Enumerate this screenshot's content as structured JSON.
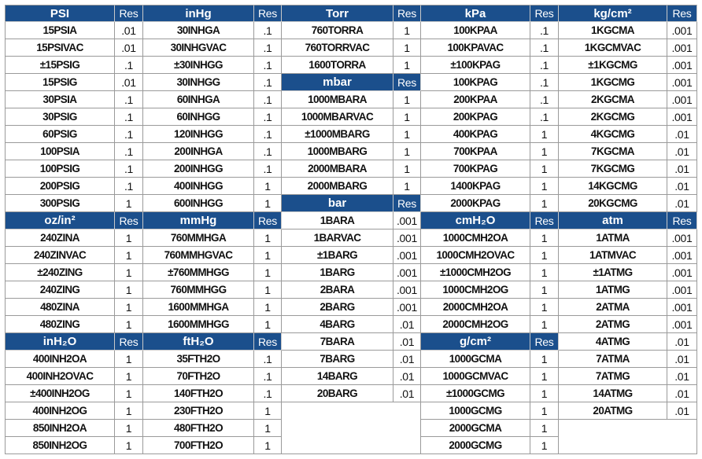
{
  "header_color": "#1b4f8c",
  "res_label": "Res",
  "groups": [
    {
      "sections": [
        {
          "title": "PSI",
          "rows": [
            [
              "15PSIA",
              ".01"
            ],
            [
              "15PSIVAC",
              ".01"
            ],
            [
              "±15PSIG",
              ".1"
            ],
            [
              "15PSIG",
              ".01"
            ],
            [
              "30PSIA",
              ".1"
            ],
            [
              "30PSIG",
              ".1"
            ],
            [
              "60PSIG",
              ".1"
            ],
            [
              "100PSIA",
              ".1"
            ],
            [
              "100PSIG",
              ".1"
            ],
            [
              "200PSIG",
              ".1"
            ],
            [
              "300PSIG",
              "1"
            ]
          ]
        },
        {
          "title": "oz/in²",
          "rows": [
            [
              "240ZINA",
              "1"
            ],
            [
              "240ZINVAC",
              "1"
            ],
            [
              "±240ZING",
              "1"
            ],
            [
              "240ZING",
              "1"
            ],
            [
              "480ZINA",
              "1"
            ],
            [
              "480ZING",
              "1"
            ]
          ]
        },
        {
          "title": "inH₂O",
          "rows": [
            [
              "400INH2OA",
              "1"
            ],
            [
              "400INH2OVAC",
              "1"
            ],
            [
              "±400INH2OG",
              "1"
            ],
            [
              "400INH2OG",
              "1"
            ],
            [
              "850INH2OA",
              "1"
            ],
            [
              "850INH2OG",
              "1"
            ]
          ]
        }
      ]
    },
    {
      "sections": [
        {
          "title": "inHg",
          "rows": [
            [
              "30INHGA",
              ".1"
            ],
            [
              "30INHGVAC",
              ".1"
            ],
            [
              "±30INHGG",
              ".1"
            ],
            [
              "30INHGG",
              ".1"
            ],
            [
              "60INHGA",
              ".1"
            ],
            [
              "60INHGG",
              ".1"
            ],
            [
              "120INHGG",
              ".1"
            ],
            [
              "200INHGA",
              ".1"
            ],
            [
              "200INHGG",
              ".1"
            ],
            [
              "400INHGG",
              "1"
            ],
            [
              "600INHGG",
              "1"
            ]
          ]
        },
        {
          "title": "mmHg",
          "rows": [
            [
              "760MMHGA",
              "1"
            ],
            [
              "760MMHGVAC",
              "1"
            ],
            [
              "±760MMHGG",
              "1"
            ],
            [
              "760MMHGG",
              "1"
            ],
            [
              "1600MMHGA",
              "1"
            ],
            [
              "1600MMHGG",
              "1"
            ]
          ]
        },
        {
          "title": "ftH₂O",
          "rows": [
            [
              "35FTH2O",
              ".1"
            ],
            [
              "70FTH2O",
              ".1"
            ],
            [
              "140FTH2O",
              ".1"
            ],
            [
              "230FTH2O",
              "1"
            ],
            [
              "480FTH2O",
              "1"
            ],
            [
              "700FTH2O",
              "1"
            ]
          ]
        }
      ]
    },
    {
      "sections": [
        {
          "title": "Torr",
          "rows": [
            [
              "760TORRA",
              "1"
            ],
            [
              "760TORRVAC",
              "1"
            ],
            [
              "1600TORRA",
              "1"
            ]
          ]
        },
        {
          "title": "mbar",
          "rows": [
            [
              "1000MBARA",
              "1"
            ],
            [
              "1000MBARVAC",
              "1"
            ],
            [
              "±1000MBARG",
              "1"
            ],
            [
              "1000MBARG",
              "1"
            ],
            [
              "2000MBARA",
              "1"
            ],
            [
              "2000MBARG",
              "1"
            ]
          ]
        },
        {
          "title": "bar",
          "rows": [
            [
              "1BARA",
              ".001"
            ],
            [
              "1BARVAC",
              ".001"
            ],
            [
              "±1BARG",
              ".001"
            ],
            [
              "1BARG",
              ".001"
            ],
            [
              "2BARA",
              ".001"
            ],
            [
              "2BARG",
              ".001"
            ],
            [
              "4BARG",
              ".01"
            ],
            [
              "7BARA",
              ".01"
            ],
            [
              "7BARG",
              ".01"
            ],
            [
              "14BARG",
              ".01"
            ],
            [
              "20BARG",
              ".01"
            ]
          ]
        }
      ]
    },
    {
      "sections": [
        {
          "title": "kPa",
          "rows": [
            [
              "100KPAA",
              ".1"
            ],
            [
              "100KPAVAC",
              ".1"
            ],
            [
              "±100KPAG",
              ".1"
            ],
            [
              "100KPAG",
              ".1"
            ],
            [
              "200KPAA",
              ".1"
            ],
            [
              "200KPAG",
              ".1"
            ],
            [
              "400KPAG",
              "1"
            ],
            [
              "700KPAA",
              "1"
            ],
            [
              "700KPAG",
              "1"
            ],
            [
              "1400KPAG",
              "1"
            ],
            [
              "2000KPAG",
              "1"
            ]
          ]
        },
        {
          "title": "cmH₂O",
          "rows": [
            [
              "1000CMH2OA",
              "1"
            ],
            [
              "1000CMH2OVAC",
              "1"
            ],
            [
              "±1000CMH2OG",
              "1"
            ],
            [
              "1000CMH2OG",
              "1"
            ],
            [
              "2000CMH2OA",
              "1"
            ],
            [
              "2000CMH2OG",
              "1"
            ]
          ]
        },
        {
          "title": "g/cm²",
          "rows": [
            [
              "1000GCMA",
              "1"
            ],
            [
              "1000GCMVAC",
              "1"
            ],
            [
              "±1000GCMG",
              "1"
            ],
            [
              "1000GCMG",
              "1"
            ],
            [
              "2000GCMA",
              "1"
            ],
            [
              "2000GCMG",
              "1"
            ]
          ]
        }
      ]
    },
    {
      "sections": [
        {
          "title": "kg/cm²",
          "rows": [
            [
              "1KGCMA",
              ".001"
            ],
            [
              "1KGCMVAC",
              ".001"
            ],
            [
              "±1KGCMG",
              ".001"
            ],
            [
              "1KGCMG",
              ".001"
            ],
            [
              "2KGCMA",
              ".001"
            ],
            [
              "2KGCMG",
              ".001"
            ],
            [
              "4KGCMG",
              ".01"
            ],
            [
              "7KGCMA",
              ".01"
            ],
            [
              "7KGCMG",
              ".01"
            ],
            [
              "14KGCMG",
              ".01"
            ],
            [
              "20KGCMG",
              ".01"
            ]
          ]
        },
        {
          "title": "atm",
          "rows": [
            [
              "1ATMA",
              ".001"
            ],
            [
              "1ATMVAC",
              ".001"
            ],
            [
              "±1ATMG",
              ".001"
            ],
            [
              "1ATMG",
              ".001"
            ],
            [
              "2ATMA",
              ".001"
            ],
            [
              "2ATMG",
              ".001"
            ],
            [
              "4ATMG",
              ".01"
            ],
            [
              "7ATMA",
              ".01"
            ],
            [
              "7ATMG",
              ".01"
            ],
            [
              "14ATMG",
              ".01"
            ],
            [
              "20ATMG",
              ".01"
            ]
          ]
        }
      ]
    }
  ]
}
